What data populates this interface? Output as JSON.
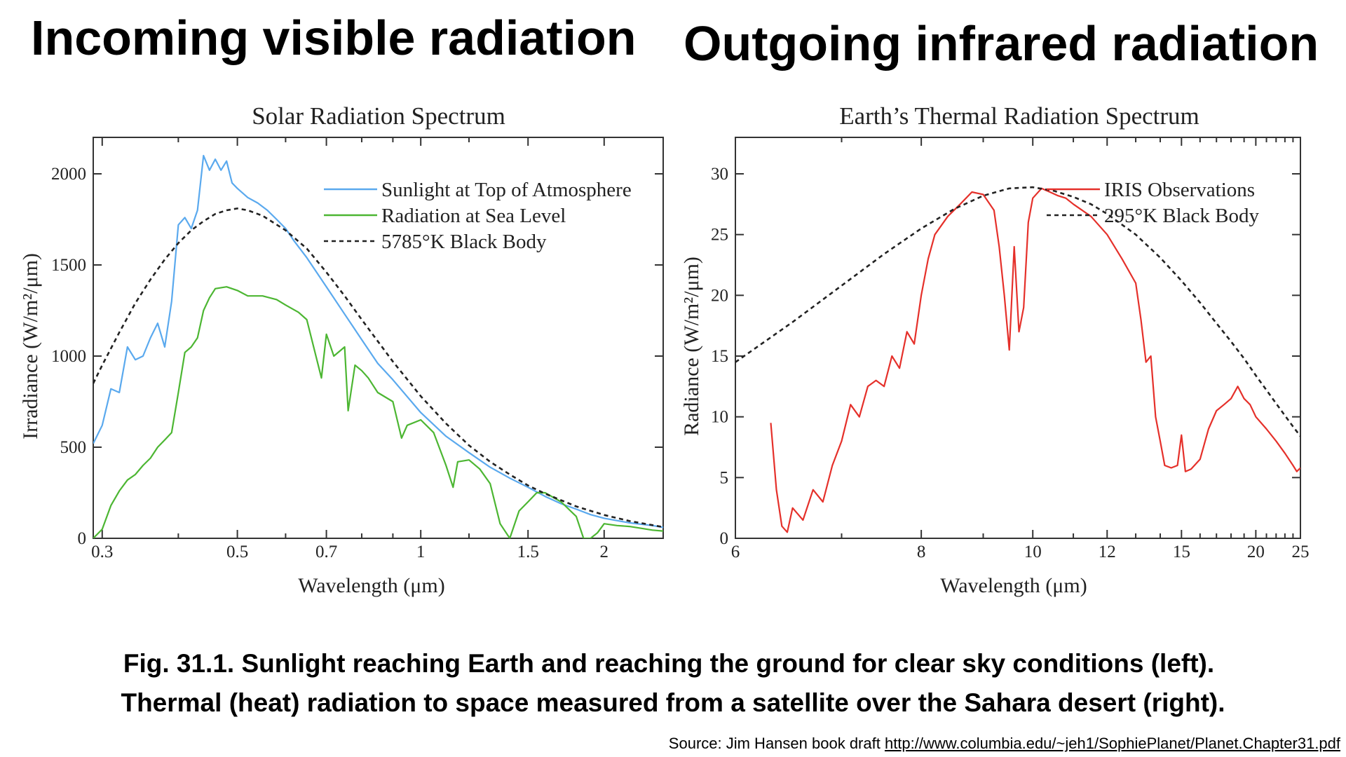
{
  "headings": {
    "left": "Incoming visible radiation",
    "right": "Outgoing infrared radiation"
  },
  "caption": {
    "line1": "Fig. 31.1.  Sunlight reaching Earth and reaching the ground for clear sky conditions (left).",
    "line2": "Thermal (heat) radiation to space measured from a satellite over the Sahara desert (right)."
  },
  "source": {
    "label": "Source: Jim Hansen book draft ",
    "url": "http://www.columbia.edu/~jeh1/SophiePlanet/Planet.Chapter31.pdf"
  },
  "colors": {
    "sunlight_top": "#5aa9ee",
    "sea_level": "#4cb632",
    "black_body": "#222222",
    "iris": "#e5302a"
  },
  "chart_data": [
    {
      "type": "line",
      "title": "Solar Radiation Spectrum",
      "xlabel": "Wavelength (μm)",
      "ylabel": "Irradiance (W/m²/μm)",
      "xscale": "log",
      "xlim": [
        0.29,
        2.5
      ],
      "ylim": [
        0,
        2200
      ],
      "xticks": [
        0.3,
        0.5,
        0.7,
        1,
        1.5,
        2
      ],
      "xtick_labels": [
        "0.3",
        "0.5",
        "0.7",
        "1",
        "1.5",
        "2"
      ],
      "xminor": [
        0.4,
        0.6,
        0.8,
        0.9,
        1.2
      ],
      "yticks": [
        0,
        500,
        1000,
        1500,
        2000
      ],
      "ytick_labels": [
        "0",
        "500",
        "1000",
        "1500",
        "2000"
      ],
      "legend_position": "top-right",
      "series": [
        {
          "name": "Sunlight at Top of Atmosphere",
          "color": "#5aa9ee",
          "style": "solid",
          "x": [
            0.29,
            0.3,
            0.31,
            0.32,
            0.33,
            0.34,
            0.35,
            0.36,
            0.37,
            0.38,
            0.39,
            0.4,
            0.41,
            0.42,
            0.43,
            0.44,
            0.45,
            0.46,
            0.47,
            0.48,
            0.49,
            0.5,
            0.52,
            0.54,
            0.56,
            0.58,
            0.6,
            0.62,
            0.65,
            0.7,
            0.75,
            0.8,
            0.85,
            0.9,
            1.0,
            1.1,
            1.2,
            1.3,
            1.4,
            1.5,
            1.6,
            1.7,
            1.8,
            1.9,
            2.0,
            2.2,
            2.4,
            2.5
          ],
          "y": [
            520,
            620,
            820,
            800,
            1050,
            980,
            1000,
            1100,
            1180,
            1050,
            1300,
            1720,
            1760,
            1700,
            1800,
            2100,
            2020,
            2080,
            2020,
            2070,
            1950,
            1920,
            1870,
            1840,
            1800,
            1750,
            1700,
            1630,
            1540,
            1380,
            1230,
            1090,
            960,
            870,
            690,
            560,
            470,
            390,
            330,
            280,
            230,
            190,
            160,
            130,
            110,
            85,
            70,
            60
          ]
        },
        {
          "name": "Radiation at Sea Level",
          "color": "#4cb632",
          "style": "solid",
          "x": [
            0.29,
            0.3,
            0.31,
            0.32,
            0.33,
            0.34,
            0.35,
            0.36,
            0.37,
            0.38,
            0.39,
            0.4,
            0.41,
            0.42,
            0.43,
            0.44,
            0.45,
            0.46,
            0.48,
            0.5,
            0.52,
            0.55,
            0.58,
            0.6,
            0.63,
            0.65,
            0.687,
            0.7,
            0.72,
            0.75,
            0.76,
            0.78,
            0.8,
            0.82,
            0.85,
            0.9,
            0.93,
            0.95,
            1.0,
            1.05,
            1.1,
            1.13,
            1.15,
            1.2,
            1.25,
            1.3,
            1.35,
            1.4,
            1.45,
            1.5,
            1.55,
            1.6,
            1.7,
            1.8,
            1.85,
            1.9,
            1.95,
            2.0,
            2.1,
            2.2,
            2.3,
            2.4,
            2.5
          ],
          "y": [
            0,
            50,
            180,
            260,
            320,
            350,
            400,
            440,
            500,
            540,
            580,
            800,
            1020,
            1050,
            1100,
            1250,
            1320,
            1370,
            1380,
            1360,
            1330,
            1330,
            1310,
            1280,
            1240,
            1200,
            880,
            1120,
            1000,
            1050,
            700,
            950,
            920,
            880,
            800,
            750,
            550,
            620,
            650,
            580,
            400,
            280,
            420,
            430,
            380,
            300,
            80,
            0,
            150,
            200,
            250,
            250,
            200,
            120,
            0,
            0,
            30,
            80,
            70,
            65,
            55,
            45,
            40
          ]
        },
        {
          "name": "5785°K Black Body",
          "color": "#222222",
          "style": "dashed",
          "x": [
            0.29,
            0.3,
            0.32,
            0.34,
            0.36,
            0.38,
            0.4,
            0.42,
            0.44,
            0.46,
            0.48,
            0.5,
            0.52,
            0.55,
            0.6,
            0.65,
            0.7,
            0.75,
            0.8,
            0.9,
            1.0,
            1.1,
            1.2,
            1.3,
            1.4,
            1.5,
            1.6,
            1.8,
            2.0,
            2.2,
            2.5
          ],
          "y": [
            850,
            950,
            1130,
            1290,
            1420,
            1530,
            1620,
            1690,
            1740,
            1780,
            1800,
            1810,
            1800,
            1770,
            1690,
            1590,
            1460,
            1330,
            1200,
            970,
            780,
            630,
            510,
            420,
            350,
            290,
            245,
            175,
            128,
            95,
            62
          ]
        }
      ]
    },
    {
      "type": "line",
      "title": "Earth’s Thermal Radiation Spectrum",
      "xlabel": "Wavelength (μm)",
      "ylabel": "Radiance (W/m²/μm)",
      "xscale": "reciprocal",
      "xlim": [
        6,
        25
      ],
      "ylim": [
        0,
        33
      ],
      "xticks": [
        6,
        8,
        10,
        12,
        15,
        20,
        25
      ],
      "xtick_labels": [
        "6",
        "8",
        "10",
        "12",
        "15",
        "20",
        "25"
      ],
      "xminor": [
        7,
        9,
        11,
        13,
        14,
        16,
        17,
        18,
        19,
        21,
        22,
        23,
        24
      ],
      "yticks": [
        0,
        5,
        10,
        15,
        20,
        25,
        30
      ],
      "ytick_labels": [
        "0",
        "5",
        "10",
        "15",
        "20",
        "25",
        "30"
      ],
      "legend_position": "top-right",
      "series": [
        {
          "name": "IRIS Observations",
          "color": "#e5302a",
          "style": "solid",
          "x": [
            6.3,
            6.35,
            6.4,
            6.45,
            6.5,
            6.6,
            6.7,
            6.8,
            6.9,
            7.0,
            7.1,
            7.2,
            7.3,
            7.4,
            7.5,
            7.6,
            7.7,
            7.8,
            7.9,
            8.0,
            8.1,
            8.2,
            8.4,
            8.6,
            8.8,
            9.0,
            9.2,
            9.3,
            9.4,
            9.5,
            9.6,
            9.7,
            9.8,
            9.9,
            10.0,
            10.2,
            10.4,
            10.6,
            10.8,
            11.0,
            11.5,
            12.0,
            12.5,
            13.0,
            13.2,
            13.4,
            13.6,
            13.8,
            14.0,
            14.2,
            14.5,
            14.8,
            15.0,
            15.2,
            15.5,
            16.0,
            16.5,
            17.0,
            17.5,
            18.0,
            18.5,
            19.0,
            19.5,
            20.0,
            21.0,
            22.0,
            23.0,
            24.0,
            24.5,
            25.0
          ],
          "y": [
            9.5,
            4.0,
            1.0,
            0.5,
            2.5,
            1.5,
            4.0,
            3.0,
            6.0,
            8.0,
            11.0,
            10.0,
            12.5,
            13.0,
            12.5,
            15.0,
            14.0,
            17.0,
            16.0,
            20.0,
            23.0,
            25.0,
            26.5,
            27.5,
            28.5,
            28.3,
            27.0,
            24.0,
            20.0,
            15.5,
            24.0,
            17.0,
            19.0,
            26.0,
            28.0,
            28.8,
            28.5,
            28.2,
            28.0,
            27.5,
            26.5,
            25.0,
            23.0,
            21.0,
            18.0,
            14.5,
            15.0,
            10.0,
            8.0,
            6.0,
            5.8,
            6.0,
            8.5,
            5.5,
            5.7,
            6.5,
            9.0,
            10.5,
            11.0,
            11.5,
            12.5,
            11.5,
            11.0,
            10.0,
            9.0,
            8.0,
            7.0,
            6.0,
            5.5,
            5.8
          ]
        },
        {
          "name": "295°K Black Body",
          "color": "#222222",
          "style": "dashed",
          "x": [
            6,
            6.5,
            7,
            7.5,
            8,
            8.5,
            9,
            9.5,
            10,
            10.5,
            11,
            11.5,
            12,
            13,
            14,
            15,
            16,
            17,
            18,
            19,
            20,
            21,
            22,
            23,
            24,
            25
          ],
          "y": [
            14.5,
            17.8,
            20.8,
            23.4,
            25.5,
            27.1,
            28.2,
            28.8,
            28.9,
            28.6,
            28.1,
            27.5,
            26.7,
            25.0,
            23.1,
            21.2,
            19.4,
            17.7,
            16.2,
            14.8,
            13.4,
            12.2,
            11.1,
            10.1,
            9.2,
            8.4
          ]
        }
      ]
    }
  ]
}
